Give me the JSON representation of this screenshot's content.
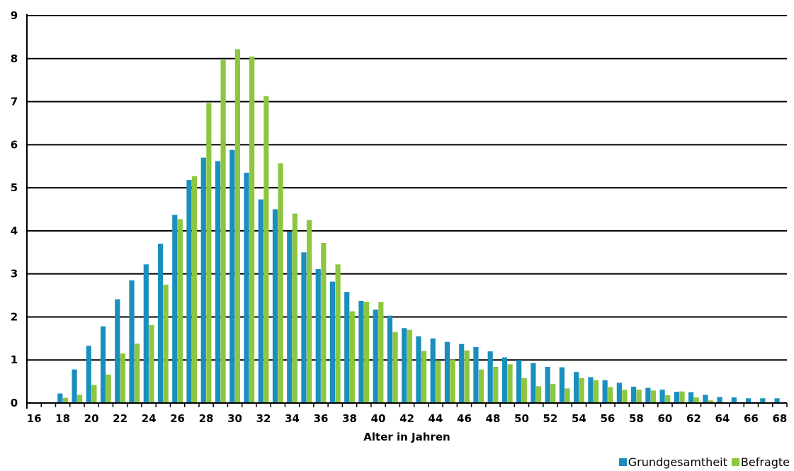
{
  "chart_data": {
    "type": "bar",
    "xlabel": "Alter in Jahren",
    "ylabel": "",
    "ylim": [
      0,
      9
    ],
    "yticks": [
      0,
      1,
      2,
      3,
      4,
      5,
      6,
      7,
      8,
      9
    ],
    "grid": true,
    "legend_position": "bottom-right",
    "categories": [
      16,
      17,
      18,
      19,
      20,
      21,
      22,
      23,
      24,
      25,
      26,
      27,
      28,
      29,
      30,
      31,
      32,
      33,
      34,
      35,
      36,
      37,
      38,
      39,
      40,
      41,
      42,
      43,
      44,
      45,
      46,
      47,
      48,
      49,
      50,
      51,
      52,
      53,
      54,
      55,
      56,
      57,
      58,
      59,
      60,
      61,
      62,
      63,
      64,
      65,
      66,
      67,
      68
    ],
    "xtick_labels": [
      16,
      18,
      20,
      22,
      24,
      26,
      28,
      30,
      32,
      34,
      36,
      38,
      40,
      42,
      44,
      46,
      48,
      50,
      52,
      54,
      56,
      58,
      60,
      62,
      64,
      66,
      68
    ],
    "series": [
      {
        "name": "Grundgesamtheit",
        "color": "#1a8fbd",
        "values": [
          0,
          0,
          0.22,
          0.78,
          1.33,
          1.78,
          2.41,
          2.85,
          3.22,
          3.7,
          4.37,
          5.18,
          5.7,
          5.62,
          5.88,
          5.35,
          4.73,
          4.5,
          3.98,
          3.5,
          3.11,
          2.82,
          2.58,
          2.37,
          2.17,
          2.03,
          1.74,
          1.55,
          1.5,
          1.42,
          1.37,
          1.3,
          1.2,
          1.06,
          1.0,
          0.93,
          0.84,
          0.83,
          0.72,
          0.6,
          0.53,
          0.47,
          0.38,
          0.35,
          0.31,
          0.26,
          0.25,
          0.19,
          0.14,
          0.13,
          0.11,
          0.11,
          0.11
        ]
      },
      {
        "name": "Befragte",
        "color": "#8dc63f",
        "values": [
          0,
          0,
          0.12,
          0.19,
          0.42,
          0.66,
          1.15,
          1.38,
          1.81,
          2.75,
          4.27,
          5.27,
          6.97,
          7.97,
          8.22,
          8.05,
          7.13,
          5.57,
          4.4,
          4.25,
          3.72,
          3.22,
          2.13,
          2.35,
          2.35,
          1.65,
          1.7,
          1.21,
          0.97,
          1.01,
          1.22,
          0.78,
          0.84,
          0.9,
          0.58,
          0.39,
          0.44,
          0.34,
          0.58,
          0.53,
          0.37,
          0.31,
          0.31,
          0.29,
          0.18,
          0.27,
          0.13,
          0.06,
          0,
          0,
          0,
          0,
          0
        ]
      }
    ]
  }
}
